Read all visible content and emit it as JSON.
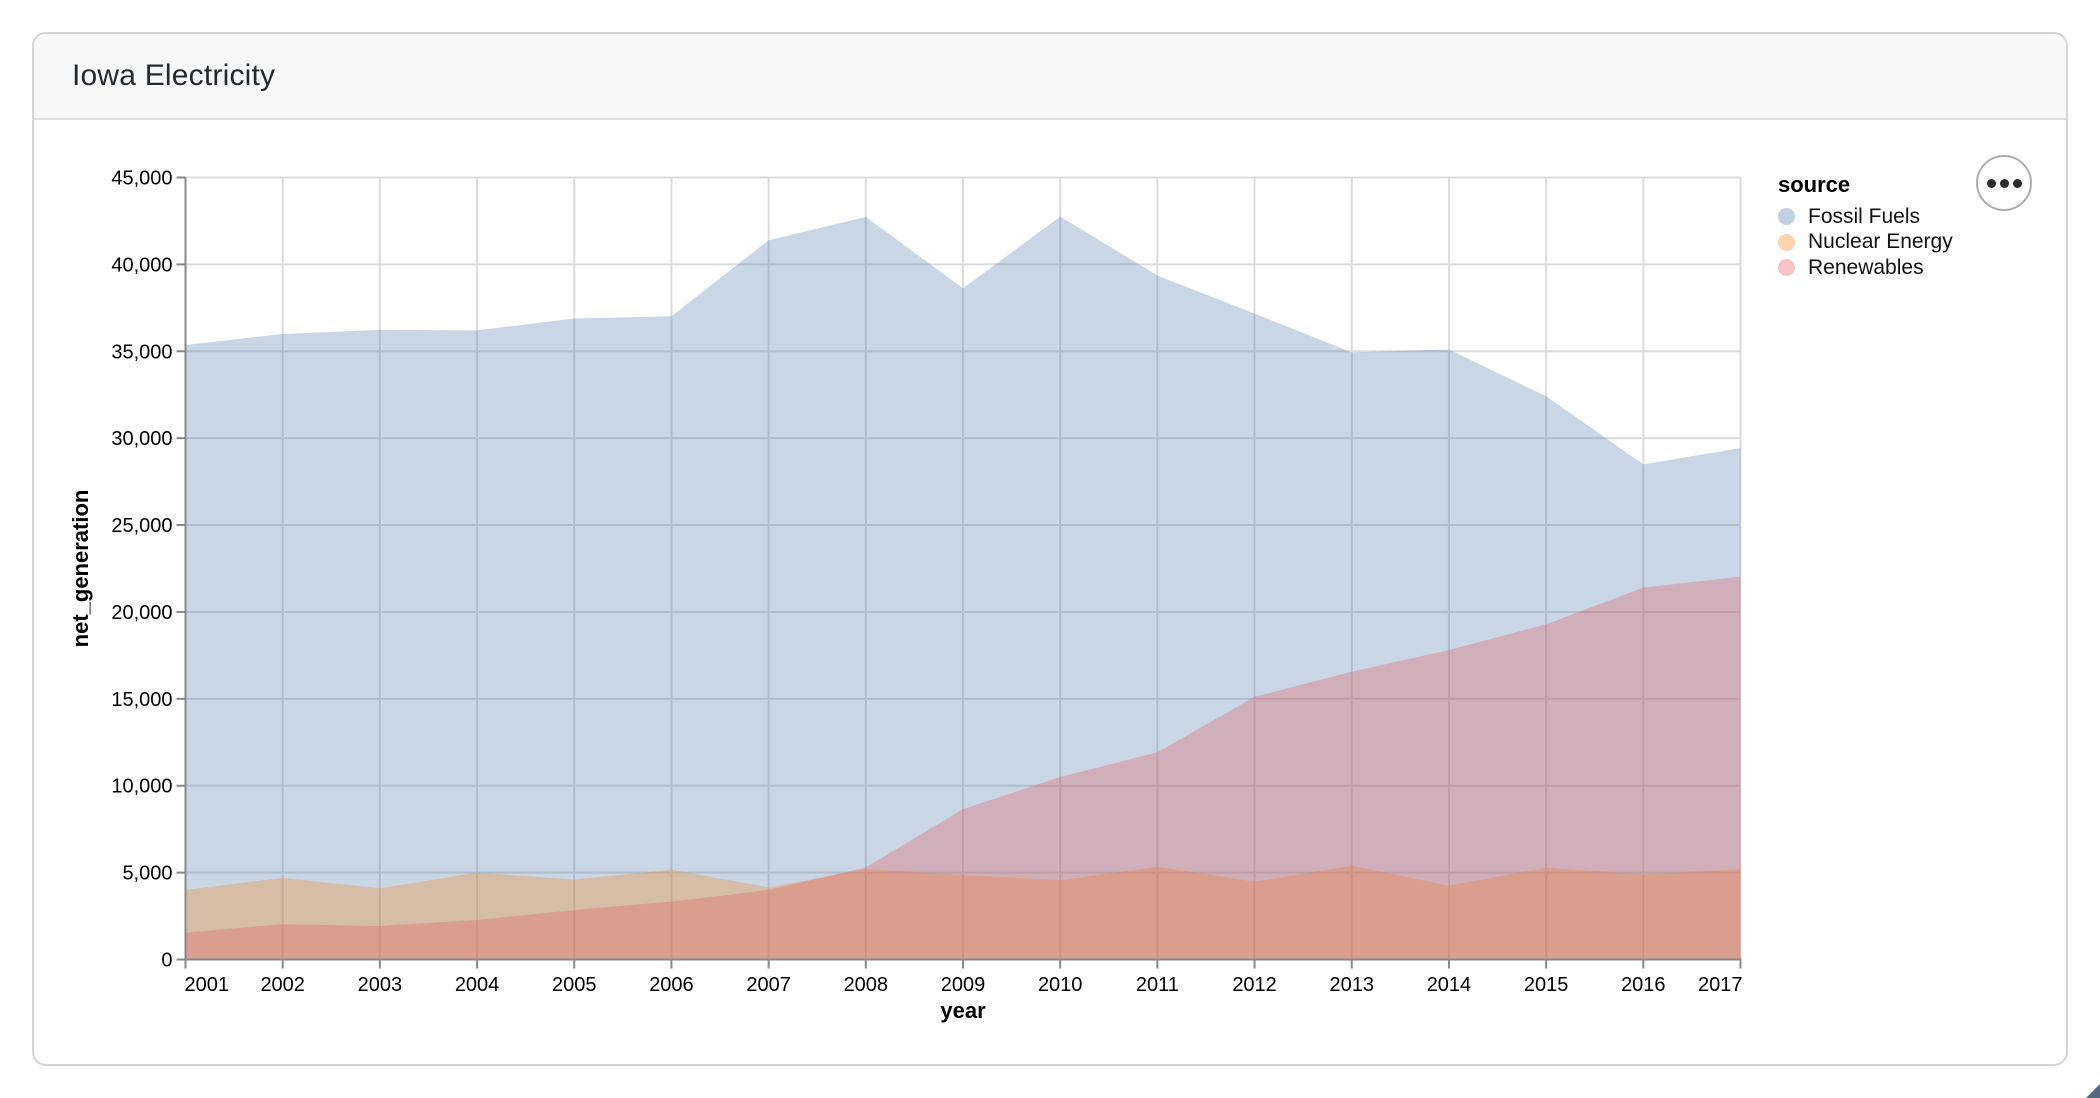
{
  "window": {
    "title": "Iowa Electricity"
  },
  "options_button": {
    "icon": "ellipsis"
  },
  "chart_data": {
    "type": "area",
    "title": "Iowa Electricity",
    "xlabel": "year",
    "ylabel": "net_generation",
    "x": [
      2001,
      2002,
      2003,
      2004,
      2005,
      2006,
      2007,
      2008,
      2009,
      2010,
      2011,
      2012,
      2013,
      2014,
      2015,
      2016,
      2017
    ],
    "series": [
      {
        "name": "Fossil Fuels",
        "color": "#4c78a8",
        "values": [
          35361,
          35991,
          36234,
          36205,
          36883,
          37014,
          41389,
          42734,
          38620,
          42750,
          39361,
          37170,
          34937,
          35101,
          32411,
          28491,
          29430
        ]
      },
      {
        "name": "Nuclear Energy",
        "color": "#f58518",
        "values": [
          4000,
          4700,
          4100,
          5000,
          4600,
          5170,
          4150,
          5200,
          4860,
          4570,
          5330,
          4480,
          5400,
          4250,
          5280,
          4900,
          5190
        ]
      },
      {
        "name": "Renewables",
        "color": "#e45756",
        "values": [
          1550,
          2030,
          1930,
          2270,
          2850,
          3330,
          4000,
          5300,
          8650,
          10500,
          11920,
          15120,
          16560,
          17810,
          19290,
          21400,
          22030
        ]
      }
    ],
    "opacity": 0.3,
    "ylim": [
      0,
      45000
    ],
    "ytick_step": 5000,
    "grid": true,
    "legend": {
      "title": "source",
      "position": "right"
    },
    "colors": {
      "grid": "#dcdcdc",
      "axis": "#888888",
      "label": "#000000"
    }
  }
}
